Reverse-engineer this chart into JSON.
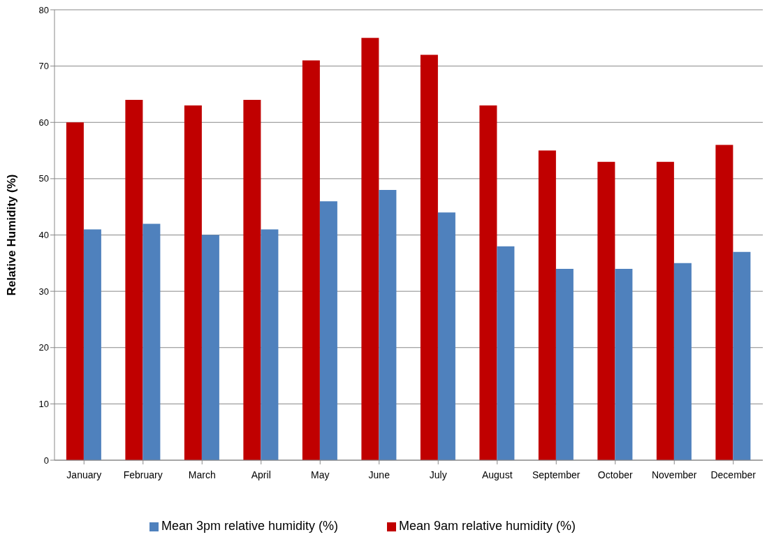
{
  "chart_data": {
    "type": "bar",
    "ylabel": "Relative Humidity (%)",
    "categories": [
      "January",
      "February",
      "March",
      "April",
      "May",
      "June",
      "July",
      "August",
      "September",
      "October",
      "November",
      "December"
    ],
    "series": [
      {
        "name": "Mean 9am relative humidity (%)",
        "color": "#c00000",
        "values": [
          60,
          64,
          63,
          64,
          71,
          75,
          72,
          63,
          55,
          53,
          53,
          56
        ]
      },
      {
        "name": "Mean 3pm relative humidity (%)",
        "color": "#4f81bd",
        "values": [
          41,
          42,
          40,
          41,
          46,
          48,
          44,
          38,
          34,
          34,
          35,
          37
        ]
      }
    ],
    "ylim": [
      0,
      80
    ],
    "yticks": [
      0,
      10,
      20,
      30,
      40,
      50,
      60,
      70,
      80
    ],
    "grid": "y",
    "legend": "bottom"
  }
}
